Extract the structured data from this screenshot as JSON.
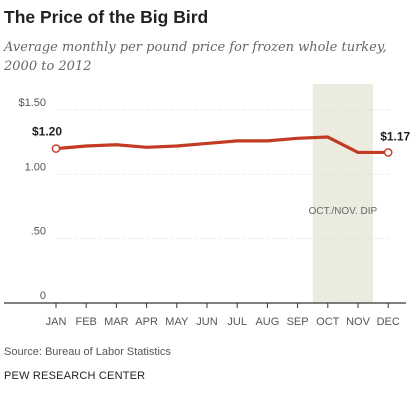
{
  "title": "The Price of the Big Bird",
  "subtitle": "Average monthly per pound price for frozen whole turkey, 2000 to 2012",
  "source": "Source: Bureau of Labor Statistics",
  "credit": "PEW RESEARCH CENTER",
  "colors": {
    "line": "#c43b25",
    "band": "#ecebe0",
    "axis": "#333333",
    "grid": "#d8d8d8"
  },
  "chart_data": {
    "type": "line",
    "categories": [
      "JAN",
      "FEB",
      "MAR",
      "APR",
      "MAY",
      "JUN",
      "JUL",
      "AUG",
      "SEP",
      "OCT",
      "NOV",
      "DEC"
    ],
    "series": [
      {
        "values": [
          1.2,
          1.22,
          1.23,
          1.21,
          1.22,
          1.24,
          1.26,
          1.26,
          1.28,
          1.29,
          1.17,
          1.17
        ]
      }
    ],
    "y_ticks": [
      {
        "value": 0,
        "label": "0"
      },
      {
        "value": 0.5,
        "label": ".50"
      },
      {
        "value": 1.0,
        "label": "1.00"
      },
      {
        "value": 1.5,
        "label": "$1.50"
      }
    ],
    "ylim": [
      0,
      1.5
    ],
    "grid": true,
    "end_labels": {
      "start": "$1.20",
      "end": "$1.17"
    },
    "highlight": {
      "from": "OCT",
      "to": "NOV",
      "label": "OCT./NOV. DIP"
    }
  }
}
